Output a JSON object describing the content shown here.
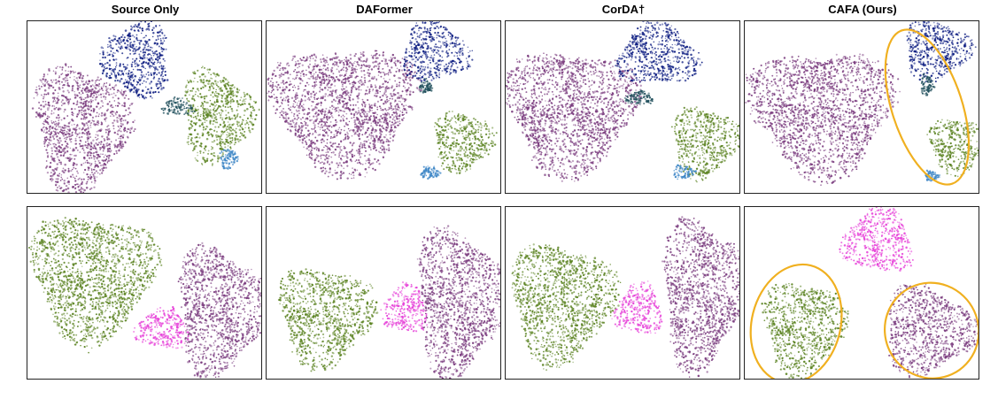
{
  "columns": [
    "Source Only",
    "DAFormer",
    "CorDA†",
    "CAFA (Ours)"
  ],
  "colors": {
    "purple": "#7a3b7e",
    "navy": "#0a1a80",
    "green": "#5a8220",
    "lightblue": "#3d86c6",
    "teal": "#1d4d5a",
    "magenta": "#e63fd8",
    "highlight": "#f0b020"
  },
  "chart_data": [
    {
      "type": "scatter",
      "row": 1,
      "method": "Source Only",
      "clusters": [
        {
          "color": "purple",
          "cx": 0.23,
          "cy": 0.62,
          "rx": 0.2,
          "ry": 0.36
        },
        {
          "color": "navy",
          "cx": 0.47,
          "cy": 0.22,
          "rx": 0.14,
          "ry": 0.22
        },
        {
          "color": "green",
          "cx": 0.81,
          "cy": 0.55,
          "rx": 0.15,
          "ry": 0.26
        },
        {
          "color": "lightblue",
          "cx": 0.86,
          "cy": 0.8,
          "rx": 0.04,
          "ry": 0.06
        },
        {
          "color": "teal",
          "cx": 0.64,
          "cy": 0.5,
          "rx": 0.07,
          "ry": 0.05
        }
      ]
    },
    {
      "type": "scatter",
      "row": 1,
      "method": "DAFormer",
      "clusters": [
        {
          "color": "purple",
          "cx": 0.33,
          "cy": 0.5,
          "rx": 0.3,
          "ry": 0.36
        },
        {
          "color": "navy",
          "cx": 0.72,
          "cy": 0.18,
          "rx": 0.14,
          "ry": 0.17
        },
        {
          "color": "green",
          "cx": 0.84,
          "cy": 0.7,
          "rx": 0.13,
          "ry": 0.17
        },
        {
          "color": "lightblue",
          "cx": 0.7,
          "cy": 0.88,
          "rx": 0.04,
          "ry": 0.04
        },
        {
          "color": "teal",
          "cx": 0.68,
          "cy": 0.38,
          "rx": 0.03,
          "ry": 0.04
        }
      ]
    },
    {
      "type": "scatter",
      "row": 1,
      "method": "CorDA†",
      "clusters": [
        {
          "color": "purple",
          "cx": 0.28,
          "cy": 0.52,
          "rx": 0.27,
          "ry": 0.36
        },
        {
          "color": "navy",
          "cx": 0.65,
          "cy": 0.2,
          "rx": 0.17,
          "ry": 0.18
        },
        {
          "color": "green",
          "cx": 0.85,
          "cy": 0.7,
          "rx": 0.14,
          "ry": 0.2
        },
        {
          "color": "lightblue",
          "cx": 0.76,
          "cy": 0.88,
          "rx": 0.05,
          "ry": 0.04
        },
        {
          "color": "teal",
          "cx": 0.57,
          "cy": 0.45,
          "rx": 0.06,
          "ry": 0.04
        }
      ]
    },
    {
      "type": "scatter",
      "row": 1,
      "method": "CAFA (Ours)",
      "clusters": [
        {
          "color": "purple",
          "cx": 0.33,
          "cy": 0.52,
          "rx": 0.3,
          "ry": 0.36
        },
        {
          "color": "navy",
          "cx": 0.82,
          "cy": 0.17,
          "rx": 0.14,
          "ry": 0.17
        },
        {
          "color": "green",
          "cx": 0.91,
          "cy": 0.72,
          "rx": 0.12,
          "ry": 0.16
        },
        {
          "color": "lightblue",
          "cx": 0.8,
          "cy": 0.9,
          "rx": 0.03,
          "ry": 0.03
        },
        {
          "color": "teal",
          "cx": 0.78,
          "cy": 0.37,
          "rx": 0.03,
          "ry": 0.06
        }
      ],
      "highlights": [
        {
          "cx": 0.78,
          "cy": 0.5,
          "rx": 0.15,
          "ry": 0.47,
          "rot": -18
        }
      ]
    },
    {
      "type": "scatter",
      "row": 2,
      "method": "Source Only",
      "clusters": [
        {
          "color": "green",
          "cx": 0.28,
          "cy": 0.4,
          "rx": 0.26,
          "ry": 0.36
        },
        {
          "color": "magenta",
          "cx": 0.58,
          "cy": 0.71,
          "rx": 0.11,
          "ry": 0.12
        },
        {
          "color": "purple",
          "cx": 0.82,
          "cy": 0.6,
          "rx": 0.18,
          "ry": 0.37
        }
      ]
    },
    {
      "type": "scatter",
      "row": 2,
      "method": "DAFormer",
      "clusters": [
        {
          "color": "green",
          "cx": 0.25,
          "cy": 0.63,
          "rx": 0.2,
          "ry": 0.28
        },
        {
          "color": "magenta",
          "cx": 0.59,
          "cy": 0.6,
          "rx": 0.1,
          "ry": 0.14
        },
        {
          "color": "purple",
          "cx": 0.82,
          "cy": 0.55,
          "rx": 0.18,
          "ry": 0.42
        }
      ]
    },
    {
      "type": "scatter",
      "row": 2,
      "method": "CorDA†",
      "clusters": [
        {
          "color": "green",
          "cx": 0.24,
          "cy": 0.55,
          "rx": 0.22,
          "ry": 0.34
        },
        {
          "color": "magenta",
          "cx": 0.57,
          "cy": 0.6,
          "rx": 0.1,
          "ry": 0.15
        },
        {
          "color": "purple",
          "cx": 0.84,
          "cy": 0.5,
          "rx": 0.17,
          "ry": 0.43
        }
      ]
    },
    {
      "type": "scatter",
      "row": 2,
      "method": "CAFA (Ours)",
      "clusters": [
        {
          "color": "green",
          "cx": 0.25,
          "cy": 0.7,
          "rx": 0.17,
          "ry": 0.27
        },
        {
          "color": "magenta",
          "cx": 0.57,
          "cy": 0.2,
          "rx": 0.15,
          "ry": 0.18
        },
        {
          "color": "purple",
          "cx": 0.78,
          "cy": 0.72,
          "rx": 0.19,
          "ry": 0.25
        }
      ],
      "highlights": [
        {
          "cx": 0.22,
          "cy": 0.68,
          "rx": 0.19,
          "ry": 0.35,
          "rot": 14
        },
        {
          "cx": 0.8,
          "cy": 0.72,
          "rx": 0.2,
          "ry": 0.28,
          "rot": -25
        }
      ]
    }
  ]
}
